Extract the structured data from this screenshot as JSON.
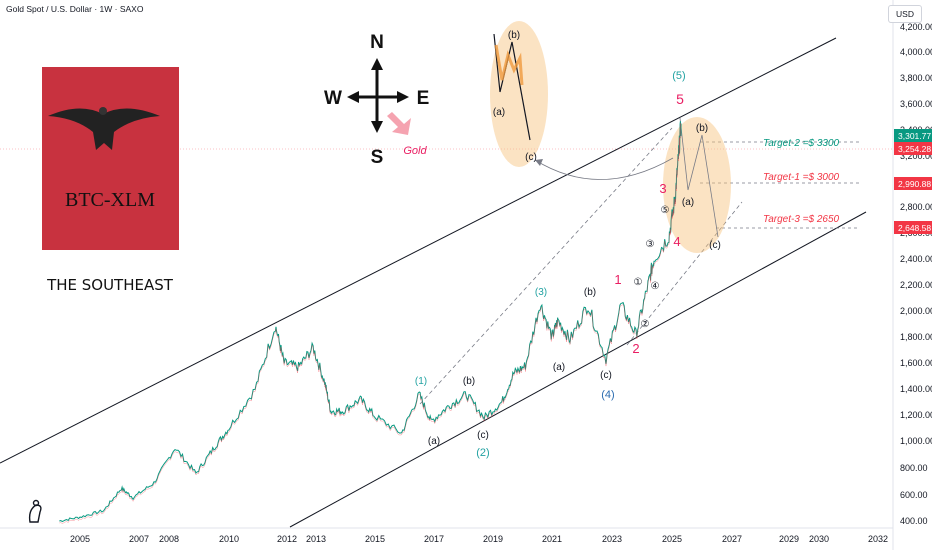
{
  "header": {
    "symbol_title": "Gold Spot / U.S. Dollar · 1W · SAXO",
    "currency": "USD"
  },
  "branding": {
    "logo_text": "BTC-XLM",
    "subtitle": "THE SOUTHEAST",
    "logo_bg": "#c8323f"
  },
  "compass": {
    "n": "N",
    "s": "S",
    "e": "E",
    "w": "W",
    "label": "Gold"
  },
  "chart_data": {
    "type": "line",
    "title": "Gold Spot / U.S. Dollar · 1W · SAXO",
    "x_ticks": [
      "2005",
      "2007",
      "2008",
      "2010",
      "2012",
      "2013",
      "2015",
      "2017",
      "2019",
      "2021",
      "2023",
      "2025",
      "2027",
      "2029",
      "2030",
      "2032"
    ],
    "y_ticks": [
      "400.00",
      "600.00",
      "800.00",
      "1,000.00",
      "1,200.00",
      "1,400.00",
      "1,600.00",
      "1,800.00",
      "2,000.00",
      "2,200.00",
      "2,400.00",
      "2,600.00",
      "2,800.00",
      "3,000.00",
      "3,200.00",
      "3,400.00",
      "3,600.00",
      "3,800.00",
      "4,000.00",
      "4,200.00"
    ],
    "ylim": [
      400,
      4250
    ],
    "xlim": [
      2003.2,
      2033.2
    ],
    "grid": false,
    "series": [
      {
        "x": [
          2004.3,
          2005.0,
          2005.8,
          2006.4,
          2006.8,
          2007.5,
          2008.2,
          2008.9,
          2009.5,
          2010.0,
          2010.9,
          2011.6,
          2011.9,
          2012.4,
          2012.9,
          2013.3,
          2013.5,
          2013.9,
          2014.5,
          2015.0,
          2015.9,
          2016.5,
          2016.9,
          2017.5,
          2018.1,
          2018.7,
          2019.3,
          2019.7,
          2020.1,
          2020.6,
          2021.0,
          2021.2,
          2021.6,
          2022.2,
          2022.8,
          2023.3,
          2023.8,
          2024.2,
          2024.4,
          2024.9,
          2025.1,
          2025.2,
          2025.3
        ],
        "y": [
          400,
          430,
          480,
          650,
          580,
          690,
          950,
          760,
          950,
          1100,
          1400,
          1890,
          1600,
          1570,
          1720,
          1450,
          1230,
          1230,
          1320,
          1190,
          1060,
          1360,
          1150,
          1270,
          1360,
          1180,
          1300,
          1520,
          1580,
          2060,
          1800,
          1930,
          1780,
          2050,
          1630,
          2050,
          1820,
          2200,
          2400,
          2580,
          2860,
          3150,
          3450
        ]
      }
    ],
    "price_tags": [
      {
        "value": "3,301.77",
        "color": "#089981"
      },
      {
        "value": "3,254.28",
        "color": "#f23645"
      },
      {
        "value": "2,990.88",
        "color": "#f23645"
      },
      {
        "value": "2,648.58",
        "color": "#f23645"
      }
    ],
    "targets": [
      {
        "label": "Target-2 =$ 3300",
        "color": "#089981"
      },
      {
        "label": "Target-1 =$ 3000",
        "color": "#f23645"
      },
      {
        "label": "Target-3 =$ 2650",
        "color": "#f23645"
      }
    ],
    "wave_labels": [
      {
        "text": "(1)",
        "color": "#22a2a2"
      },
      {
        "text": "(2)",
        "color": "#22a2a2"
      },
      {
        "text": "(3)",
        "color": "#22a2a2"
      },
      {
        "text": "(4)",
        "color": "#2b6cb0"
      },
      {
        "text": "(5)",
        "color": "#22a2a2"
      },
      {
        "text": "(a)",
        "color": "#131722"
      },
      {
        "text": "(b)",
        "color": "#131722"
      },
      {
        "text": "(c)",
        "color": "#131722"
      },
      {
        "text": "(a)",
        "color": "#131722"
      },
      {
        "text": "(b)",
        "color": "#131722"
      },
      {
        "text": "(c)",
        "color": "#131722"
      },
      {
        "text": "1",
        "color": "#e91e63"
      },
      {
        "text": "2",
        "color": "#e91e63"
      },
      {
        "text": "3",
        "color": "#e91e63"
      },
      {
        "text": "4",
        "color": "#e91e63"
      },
      {
        "text": "5",
        "color": "#e91e63"
      },
      {
        "text": "①",
        "color": "#131722"
      },
      {
        "text": "②",
        "color": "#131722"
      },
      {
        "text": "③",
        "color": "#131722"
      },
      {
        "text": "④",
        "color": "#131722"
      },
      {
        "text": "⑤",
        "color": "#131722"
      },
      {
        "text": "(a)",
        "color": "#131722"
      },
      {
        "text": "(b)",
        "color": "#131722"
      },
      {
        "text": "(c)",
        "color": "#131722"
      },
      {
        "text": "(a)",
        "color": "#131722"
      },
      {
        "text": "(b)",
        "color": "#131722"
      },
      {
        "text": "(c)",
        "color": "#131722"
      }
    ]
  }
}
